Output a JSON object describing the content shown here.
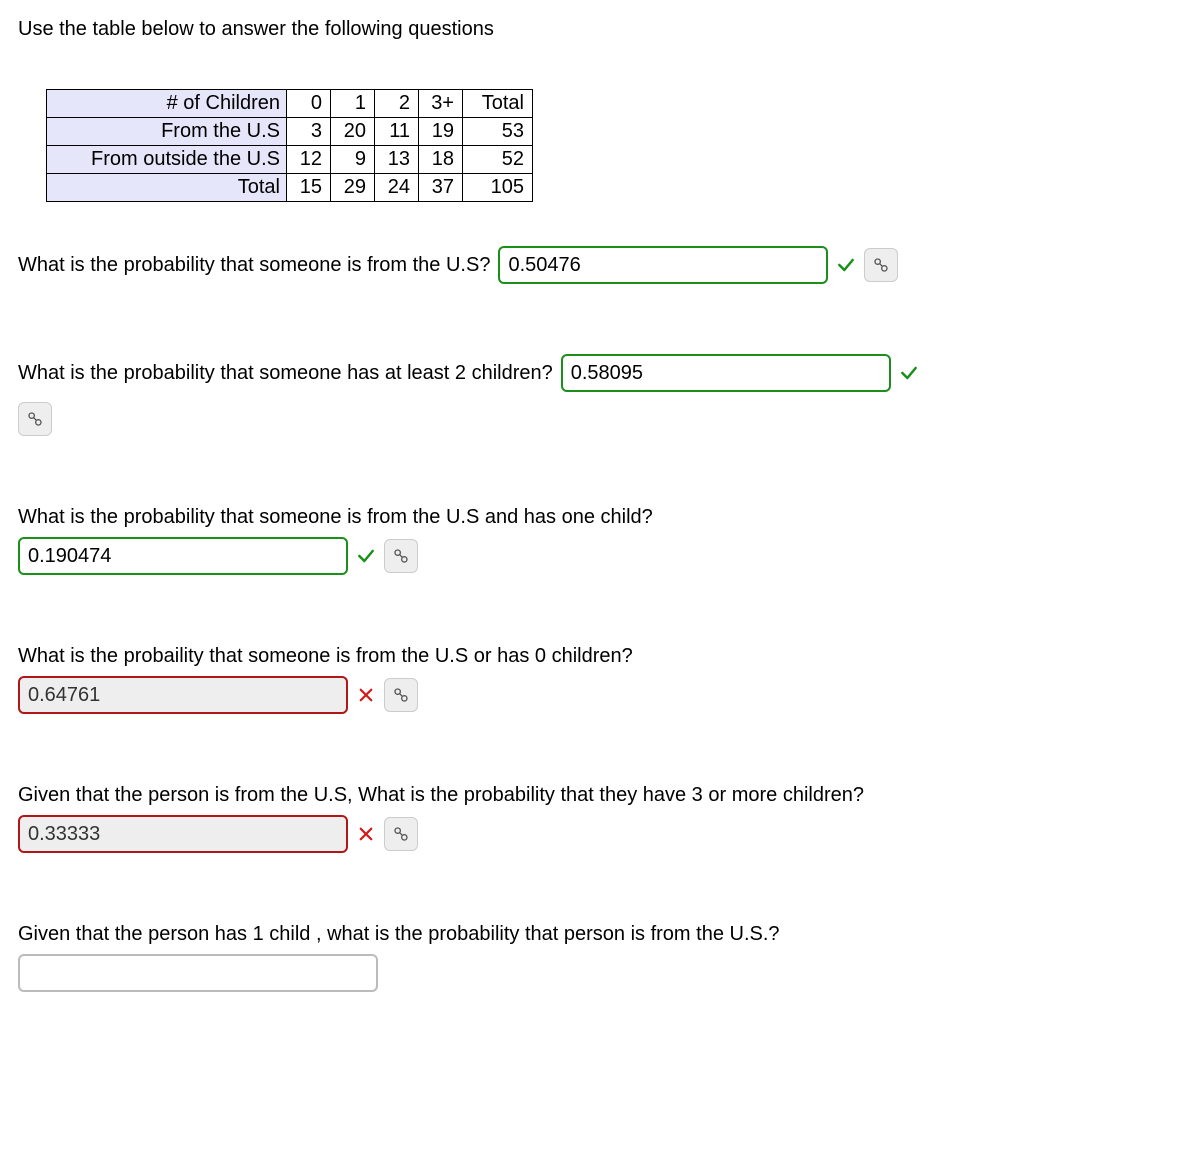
{
  "intro": "Use the table below to answer the following questions",
  "table": {
    "header_bg": "#e6e6fa",
    "columns": [
      "# of Children",
      "0",
      "1",
      "2",
      "3+",
      "Total"
    ],
    "rows": [
      [
        "From the U.S",
        "3",
        "20",
        "11",
        "19",
        "53"
      ],
      [
        "From outside the U.S",
        "12",
        "9",
        "13",
        "18",
        "52"
      ],
      [
        "Total",
        "15",
        "29",
        "24",
        "37",
        "105"
      ]
    ]
  },
  "colors": {
    "correct_border": "#1a8f1a",
    "incorrect_border": "#b01818",
    "check": "#1a8f1a",
    "cross": "#d11a1a",
    "tool_bg": "#eeeeee",
    "tool_border": "#cccccc"
  },
  "questions": [
    {
      "text": "What is the probability that someone is from the U.S?",
      "value": "0.50476",
      "status": "correct",
      "input_width": 330,
      "layout": "inline",
      "tool_below": false
    },
    {
      "text": "What is the probability that someone has at least 2 children?",
      "value": "0.58095",
      "status": "correct",
      "input_width": 330,
      "layout": "inline",
      "tool_below": true
    },
    {
      "text": "What is the probability that someone is from the U.S and has one child?",
      "value": "0.190474",
      "status": "correct",
      "input_width": 330,
      "layout": "below",
      "tool_below": false
    },
    {
      "text": "What is the probaility that someone is from the U.S or has 0 children?",
      "value": "0.64761",
      "status": "incorrect",
      "input_width": 330,
      "layout": "below",
      "tool_below": false
    },
    {
      "text": "Given that the person is from the U.S, What is the probability that they have 3 or more children?",
      "value": "0.33333",
      "status": "incorrect",
      "input_width": 330,
      "layout": "below",
      "tool_below": false
    },
    {
      "text": "Given that the person has 1 child , what is the probability that person is from the U.S.?",
      "value": "",
      "status": "blank",
      "input_width": 360,
      "layout": "below",
      "tool_below": false
    }
  ]
}
